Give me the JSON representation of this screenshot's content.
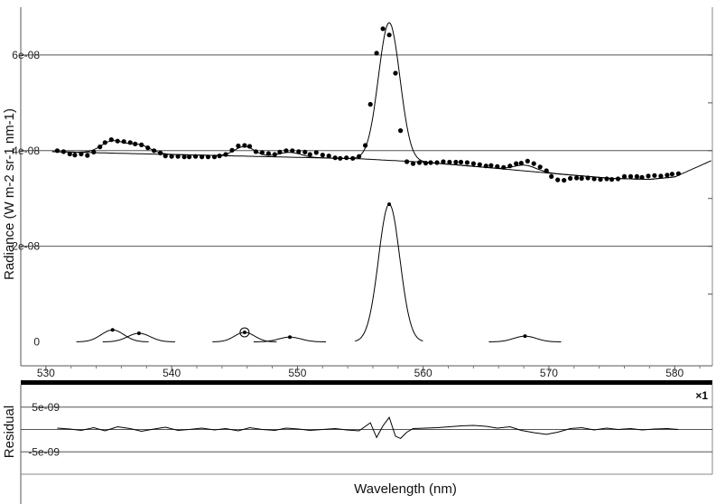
{
  "chart_data": [
    {
      "type": "scatter",
      "ylabel": "Radiance (W m-2 sr-1 nm-1)",
      "xlim": [
        528,
        583
      ],
      "ylim": [
        -5e-09,
        7e-08
      ],
      "xticks": [
        530,
        540,
        550,
        560,
        570,
        580
      ],
      "xtick_labels": [
        "530",
        "540",
        "550",
        "560",
        "570",
        "580"
      ],
      "yticks": [
        0,
        2e-08,
        4e-08,
        6e-08
      ],
      "ytick_labels": [
        "0",
        "2e-08",
        "4e-08",
        "6e-08"
      ],
      "grid": "horizontal",
      "observed": {
        "x": [
          530.9,
          531.4,
          531.9,
          532.3,
          532.8,
          533.3,
          533.8,
          534.3,
          534.7,
          535.2,
          535.7,
          536.2,
          536.7,
          537.1,
          537.6,
          538.1,
          538.6,
          539.1,
          539.5,
          540.0,
          540.5,
          541.0,
          541.4,
          541.9,
          542.4,
          542.9,
          543.4,
          543.8,
          544.3,
          544.8,
          545.3,
          545.8,
          546.2,
          546.7,
          547.2,
          547.7,
          548.2,
          548.6,
          549.1,
          549.6,
          550.1,
          550.6,
          551.0,
          551.5,
          552.0,
          552.5,
          553.0,
          553.4,
          553.9,
          554.4,
          554.9,
          555.4,
          555.8,
          556.3,
          556.8,
          557.3,
          557.8,
          558.2,
          558.7,
          559.2,
          559.7,
          560.2,
          560.6,
          561.1,
          561.6,
          562.1,
          562.6,
          563.0,
          563.5,
          564.0,
          564.5,
          565.0,
          565.4,
          565.9,
          566.4,
          566.9,
          567.4,
          567.8,
          568.3,
          568.8,
          569.3,
          569.8,
          570.2,
          570.7,
          571.2,
          571.7,
          572.2,
          572.6,
          573.1,
          573.6,
          574.1,
          574.6,
          575.0,
          575.5,
          576.0,
          576.5,
          577.0,
          577.4,
          577.9,
          578.4,
          578.9,
          579.4,
          579.8,
          580.3
        ],
        "y": [
          4e-08,
          3.98e-08,
          3.93e-08,
          3.91e-08,
          3.93e-08,
          3.9e-08,
          3.97e-08,
          4.08e-08,
          4.17e-08,
          4.23e-08,
          4.2e-08,
          4.19e-08,
          4.17e-08,
          4.14e-08,
          4.12e-08,
          4.06e-08,
          4e-08,
          3.95e-08,
          3.89e-08,
          3.88e-08,
          3.88e-08,
          3.87e-08,
          3.87e-08,
          3.88e-08,
          3.87e-08,
          3.87e-08,
          3.87e-08,
          3.89e-08,
          3.92e-08,
          4.01e-08,
          4.1e-08,
          4.11e-08,
          4.09e-08,
          3.98e-08,
          3.96e-08,
          3.94e-08,
          3.92e-08,
          3.97e-08,
          4e-08,
          4e-08,
          3.98e-08,
          3.97e-08,
          3.92e-08,
          3.96e-08,
          3.91e-08,
          3.89e-08,
          3.85e-08,
          3.84e-08,
          3.85e-08,
          3.84e-08,
          3.88e-08,
          4.11e-08,
          4.97e-08,
          6.04e-08,
          6.55e-08,
          6.42e-08,
          5.62e-08,
          4.42e-08,
          3.77e-08,
          3.73e-08,
          3.75e-08,
          3.74e-08,
          3.75e-08,
          3.75e-08,
          3.77e-08,
          3.76e-08,
          3.76e-08,
          3.76e-08,
          3.75e-08,
          3.73e-08,
          3.71e-08,
          3.68e-08,
          3.69e-08,
          3.67e-08,
          3.65e-08,
          3.68e-08,
          3.73e-08,
          3.74e-08,
          3.78e-08,
          3.73e-08,
          3.66e-08,
          3.58e-08,
          3.46e-08,
          3.39e-08,
          3.38e-08,
          3.42e-08,
          3.43e-08,
          3.42e-08,
          3.43e-08,
          3.41e-08,
          3.4e-08,
          3.41e-08,
          3.4e-08,
          3.41e-08,
          3.46e-08,
          3.46e-08,
          3.46e-08,
          3.44e-08,
          3.47e-08,
          3.48e-08,
          3.47e-08,
          3.49e-08,
          3.51e-08,
          3.52e-08
        ]
      },
      "baseline": {
        "x": [
          530.5,
          535,
          540,
          545,
          550,
          555,
          560,
          565,
          570,
          575,
          578,
          580,
          583
        ],
        "y": [
          3.98e-08,
          3.95e-08,
          3.92e-08,
          3.89e-08,
          3.86e-08,
          3.83e-08,
          3.76e-08,
          3.65e-08,
          3.53e-08,
          3.42e-08,
          3.4e-08,
          3.45e-08,
          3.8e-08
        ]
      },
      "peaks": [
        {
          "center": 535.3,
          "amplitude": 2.5e-09,
          "sigma": 0.9
        },
        {
          "center": 537.4,
          "amplitude": 1.8e-09,
          "sigma": 0.9
        },
        {
          "center": 545.8,
          "amplitude": 2e-09,
          "sigma": 0.8
        },
        {
          "center": 549.4,
          "amplitude": 1e-09,
          "sigma": 0.9
        },
        {
          "center": 557.3,
          "amplitude": 2.88e-08,
          "sigma": 0.85
        },
        {
          "center": 568.1,
          "amplitude": 1.2e-09,
          "sigma": 0.9
        }
      ],
      "highlighted_peak": 545.8
    },
    {
      "type": "line",
      "xlabel": "Wavelength (nm)",
      "ylabel": "Residual",
      "xlim": [
        528,
        583
      ],
      "ylim": [
        -1e-08,
        1e-08
      ],
      "yticks": [
        5e-09,
        -5e-09
      ],
      "ytick_labels": [
        "5e-09",
        "-5e-09"
      ],
      "multiplier_label": "×1",
      "grid": "horizontal",
      "residual": {
        "x": [
          530.9,
          531.9,
          532.8,
          533.8,
          534.7,
          535.7,
          536.7,
          537.6,
          538.6,
          539.5,
          540.5,
          541.4,
          542.4,
          543.4,
          544.3,
          545.3,
          546.2,
          547.2,
          548.2,
          549.1,
          550.1,
          551.0,
          552.0,
          553.0,
          553.9,
          554.9,
          555.8,
          556.3,
          556.8,
          557.3,
          557.8,
          558.2,
          558.7,
          559.2,
          560.2,
          561.1,
          562.1,
          563.0,
          564.0,
          565.0,
          565.9,
          566.9,
          567.8,
          568.8,
          569.8,
          570.7,
          571.7,
          572.6,
          573.6,
          574.6,
          575.5,
          576.5,
          577.4,
          578.4,
          579.4,
          580.3
        ],
        "y": [
          3e-10,
          1e-10,
          -2e-10,
          4e-10,
          -3e-10,
          6e-10,
          2e-10,
          -4e-10,
          1e-10,
          5e-10,
          -2e-10,
          0.0,
          3e-10,
          -1e-10,
          2e-10,
          -3e-10,
          4e-10,
          0.0,
          -2e-10,
          3e-10,
          1e-10,
          -2e-10,
          0.0,
          2e-10,
          -1e-10,
          -3e-10,
          1.5e-09,
          -1.8e-09,
          8e-10,
          2.7e-09,
          -1.5e-09,
          -2e-09,
          -6e-10,
          2e-10,
          3e-10,
          4e-10,
          6e-10,
          8e-10,
          9e-10,
          7e-10,
          3e-10,
          6e-10,
          -2e-10,
          -7e-10,
          -1.1e-09,
          -6e-10,
          2e-10,
          4e-10,
          -1e-10,
          3e-10,
          0.0,
          2e-10,
          -1e-10,
          1e-10,
          2e-10,
          0.0
        ]
      }
    }
  ]
}
